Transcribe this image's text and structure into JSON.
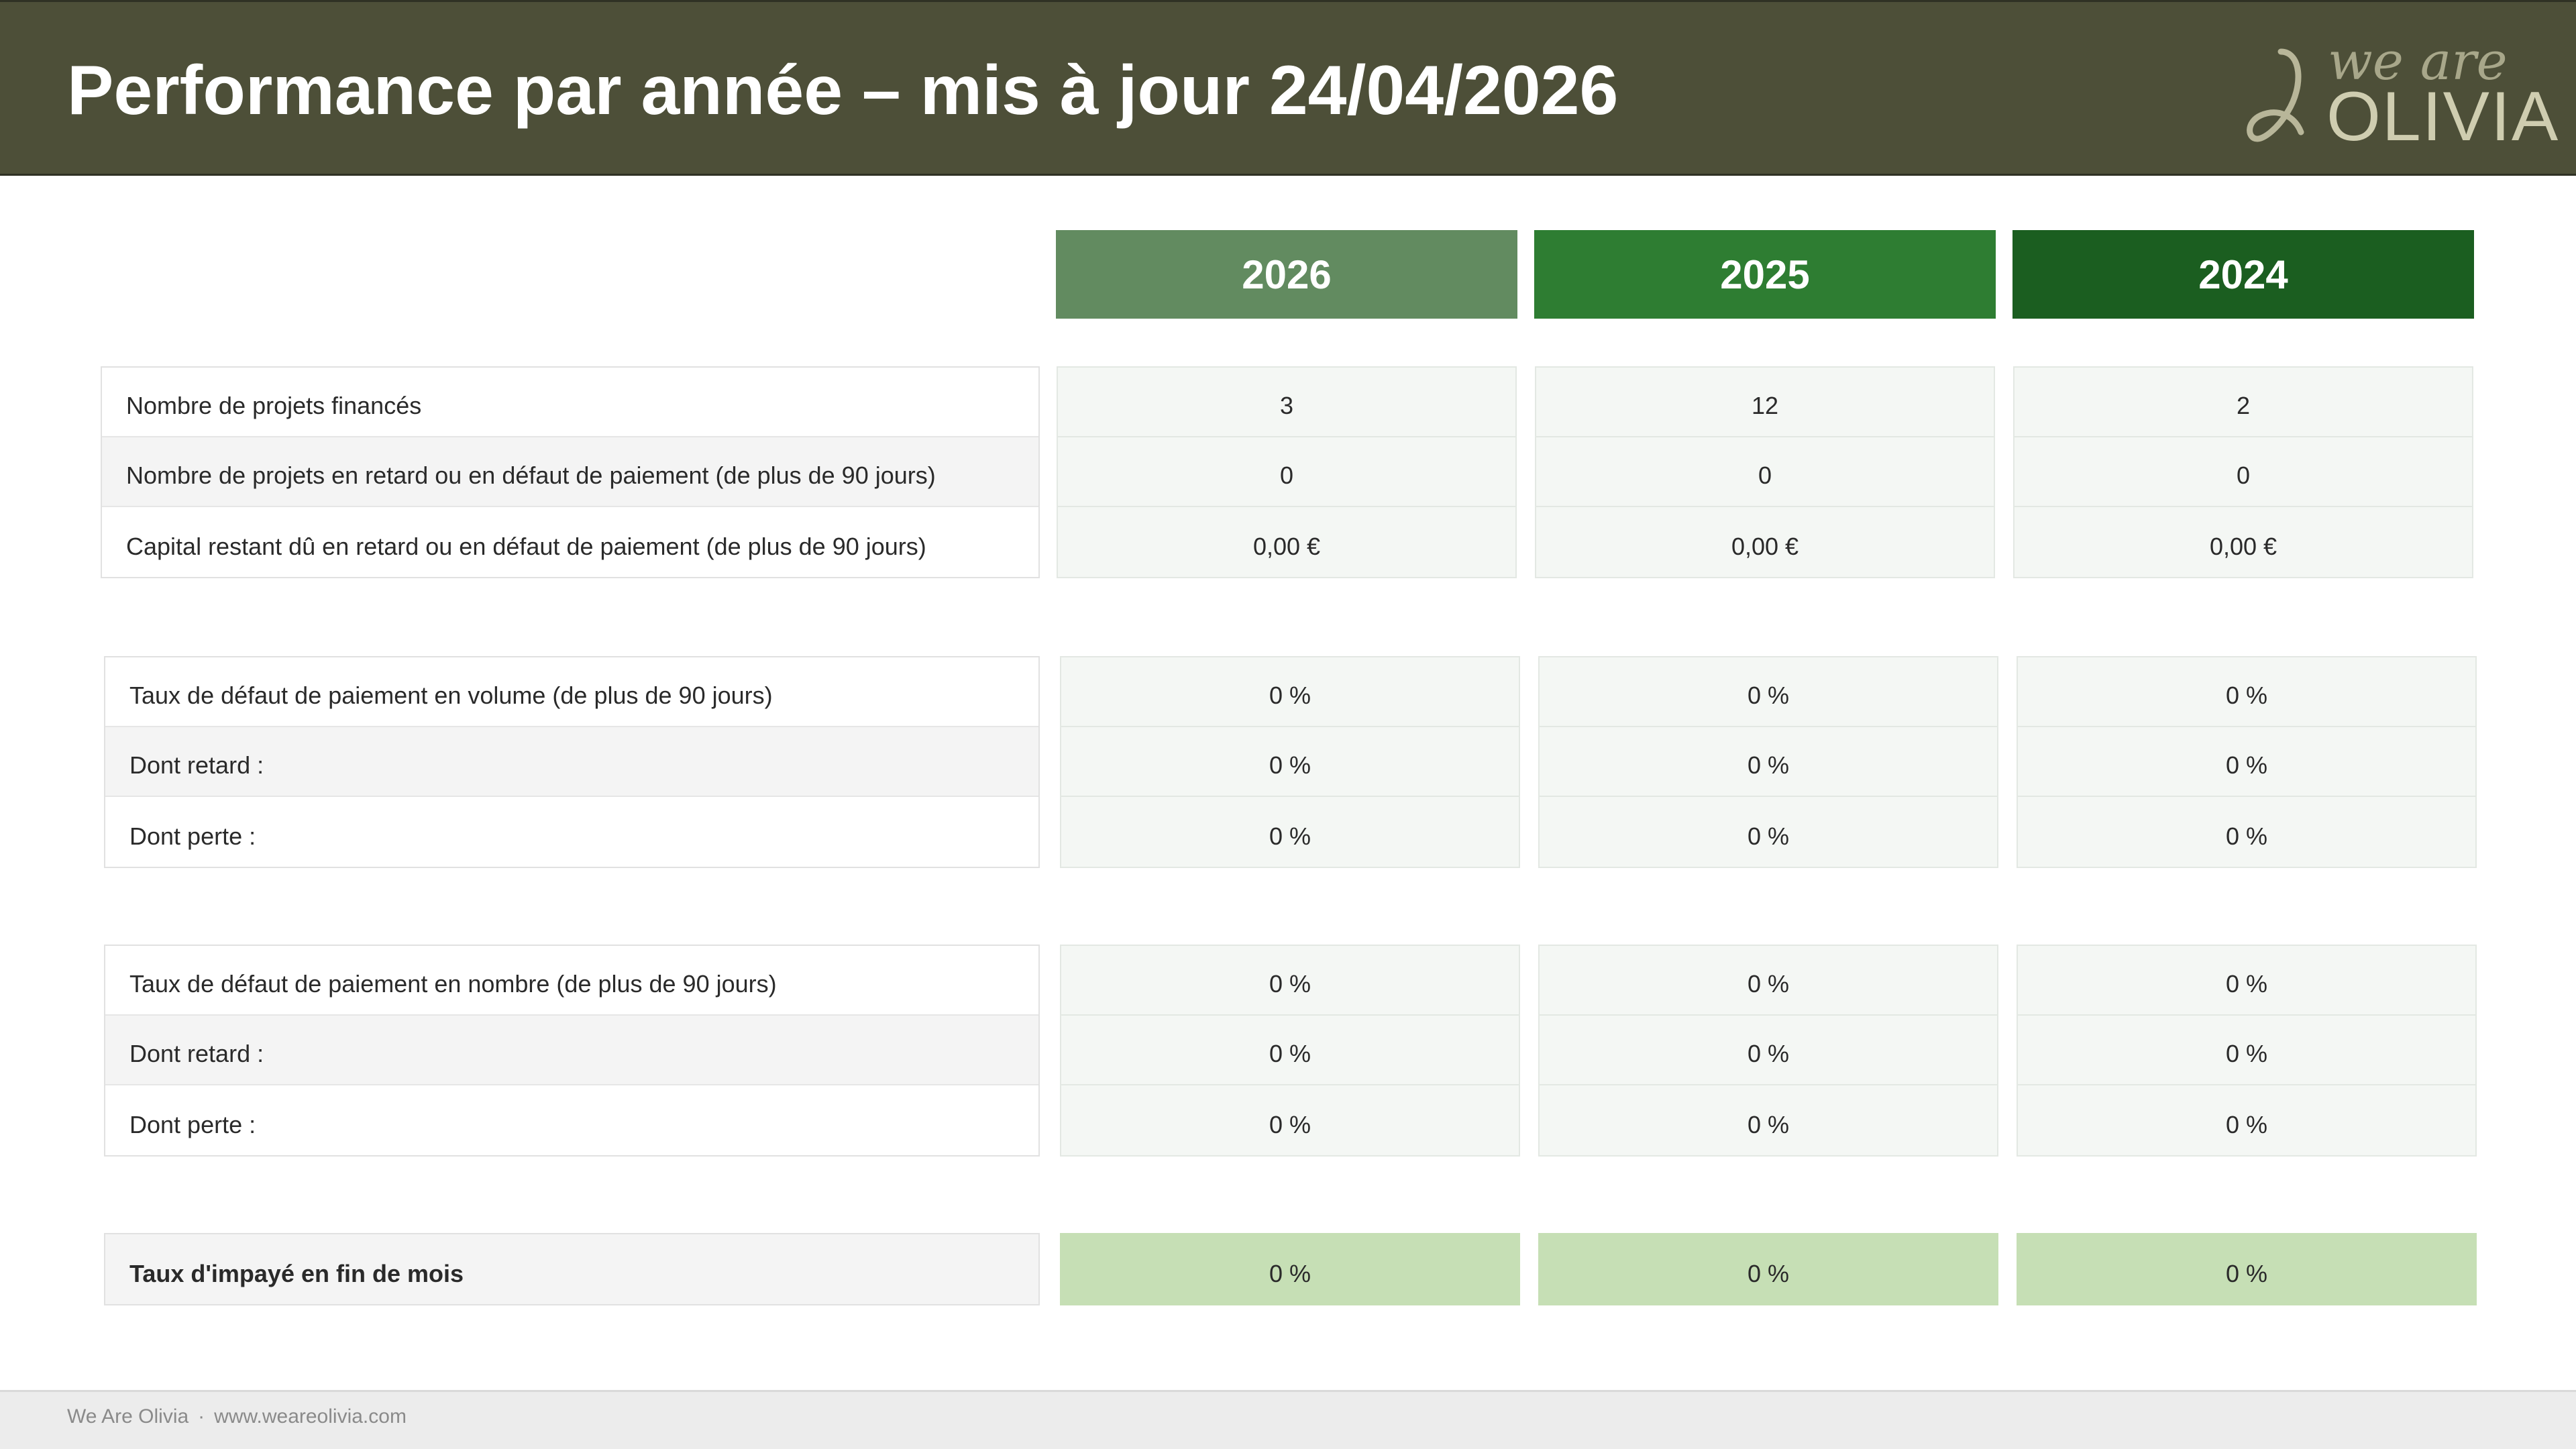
{
  "header": {
    "title": "Performance par année – mis à jour 24/04/2026",
    "logo": {
      "line1": "we are",
      "line2": "OLIVIA"
    }
  },
  "years": [
    {
      "label": "2026",
      "color": "#628b60"
    },
    {
      "label": "2025",
      "color": "#2e7d32"
    },
    {
      "label": "2024",
      "color": "#1b5e20"
    }
  ],
  "groups": [
    {
      "rows": [
        "Nombre de projets financés",
        "Nombre de projets en retard ou en défaut de paiement (de plus de 90 jours)",
        "Capital restant dû en retard ou en défaut de paiement (de plus de 90 jours)"
      ],
      "values": [
        [
          "3",
          "0",
          "0,00 €"
        ],
        [
          "12",
          "0",
          "0,00 €"
        ],
        [
          "2",
          "0",
          "0,00 €"
        ]
      ]
    },
    {
      "rows": [
        "Taux de défaut de paiement en volume (de plus de 90 jours)",
        "Dont retard :",
        "Dont perte :"
      ],
      "values": [
        [
          "0 %",
          "0 %",
          "0 %"
        ],
        [
          "0 %",
          "0 %",
          "0 %"
        ],
        [
          "0 %",
          "0 %",
          "0 %"
        ]
      ]
    },
    {
      "rows": [
        "Taux de défaut de paiement en nombre (de plus de 90 jours)",
        "Dont retard :",
        "Dont perte :"
      ],
      "values": [
        [
          "0 %",
          "0 %",
          "0 %"
        ],
        [
          "0 %",
          "0 %",
          "0 %"
        ],
        [
          "0 %",
          "0 %",
          "0 %"
        ]
      ]
    },
    {
      "rows": [
        "Taux d'impayé en fin de mois"
      ],
      "values": [
        [
          "0 %"
        ],
        [
          "0 %"
        ],
        [
          "0 %"
        ]
      ]
    }
  ],
  "footer": {
    "company": "We Are Olivia",
    "separator": "·",
    "website": "www.weareolivia.com"
  }
}
